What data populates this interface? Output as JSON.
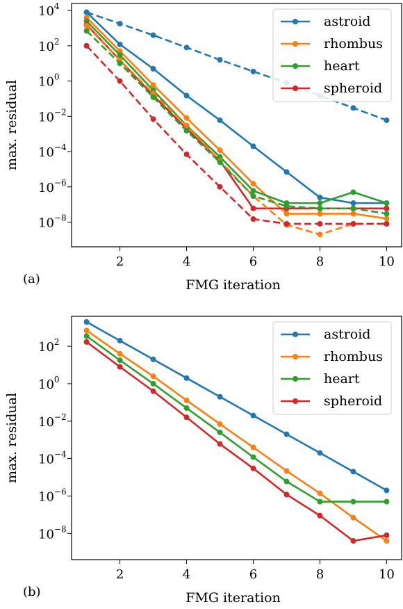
{
  "chart_data": [
    {
      "type": "line",
      "panel_label": "(a)",
      "xlabel": "FMG iteration",
      "ylabel": "max. residual",
      "xlim": [
        0.55,
        10.45
      ],
      "ylim_exponent": [
        -9.4,
        4.4
      ],
      "y_scale": "log",
      "grid": false,
      "legend_position": "top-right",
      "x_ticks": [
        2,
        4,
        6,
        8,
        10
      ],
      "y_ticks": [
        {
          "base": "10",
          "exp": "4",
          "value_exp": 4
        },
        {
          "base": "10",
          "exp": "2",
          "value_exp": 2
        },
        {
          "base": "10",
          "exp": "0",
          "value_exp": 0
        },
        {
          "base": "10",
          "exp": "−2",
          "value_exp": -2
        },
        {
          "base": "10",
          "exp": "−4",
          "value_exp": -4
        },
        {
          "base": "10",
          "exp": "−6",
          "value_exp": -6
        },
        {
          "base": "10",
          "exp": "−8",
          "value_exp": -8
        }
      ],
      "x": [
        1,
        2,
        3,
        4,
        5,
        6,
        7,
        8,
        9,
        10
      ],
      "series": [
        {
          "name": "astroid",
          "color": "#1f77b4",
          "line_style": "solid",
          "values": [
            8000,
            120,
            5,
            0.15,
            0.006,
            0.0002,
            7e-06,
            2.5e-07,
            1.2e-07,
            1.2e-07
          ]
        },
        {
          "name": "rhombus",
          "color": "#ff7f0e",
          "line_style": "solid",
          "values": [
            4000,
            50,
            0.6,
            0.008,
            0.00012,
            1.5e-06,
            3e-08,
            3e-08,
            3e-08,
            1.6e-08
          ]
        },
        {
          "name": "heart",
          "color": "#2ca02c",
          "line_style": "solid",
          "values": [
            2500,
            30,
            0.3,
            0.003,
            5e-05,
            6e-07,
            1.2e-07,
            1.2e-07,
            5e-07,
            1.2e-07
          ]
        },
        {
          "name": "spheroid",
          "color": "#d62728",
          "line_style": "solid",
          "values": [
            1600,
            15,
            0.15,
            0.002,
            3e-05,
            6e-08,
            6e-08,
            6e-08,
            6e-08,
            6e-08
          ]
        },
        {
          "name": "",
          "color": "#1f77b4",
          "line_style": "dashed",
          "values": [
            8000,
            1800,
            400,
            80,
            16,
            3.5,
            0.8,
            0.15,
            0.03,
            0.006
          ]
        },
        {
          "name": "",
          "color": "#ff7f0e",
          "line_style": "dashed",
          "values": [
            1400,
            15,
            0.2,
            0.003,
            3e-05,
            3e-07,
            7e-09,
            2e-09,
            8e-09,
            8e-09
          ]
        },
        {
          "name": "",
          "color": "#2ca02c",
          "line_style": "dashed",
          "values": [
            700,
            10,
            0.12,
            0.0015,
            2.5e-05,
            3e-07,
            8e-08,
            6e-08,
            6e-08,
            3e-08
          ]
        },
        {
          "name": "",
          "color": "#d62728",
          "line_style": "dashed",
          "values": [
            100,
            1,
            0.007,
            7e-05,
            1e-06,
            1.5e-08,
            8e-09,
            8e-09,
            8e-09,
            8e-09
          ]
        }
      ]
    },
    {
      "type": "line",
      "panel_label": "(b)",
      "xlabel": "FMG iteration",
      "ylabel": "max. residual",
      "xlim": [
        0.55,
        10.45
      ],
      "ylim_exponent": [
        -9.4,
        3.6
      ],
      "y_scale": "log",
      "grid": false,
      "legend_position": "top-right",
      "x_ticks": [
        2,
        4,
        6,
        8,
        10
      ],
      "y_ticks": [
        {
          "base": "10",
          "exp": "2",
          "value_exp": 2
        },
        {
          "base": "10",
          "exp": "0",
          "value_exp": 0
        },
        {
          "base": "10",
          "exp": "−2",
          "value_exp": -2
        },
        {
          "base": "10",
          "exp": "−4",
          "value_exp": -4
        },
        {
          "base": "10",
          "exp": "−6",
          "value_exp": -6
        },
        {
          "base": "10",
          "exp": "−8",
          "value_exp": -8
        }
      ],
      "x": [
        1,
        2,
        3,
        4,
        5,
        6,
        7,
        8,
        9,
        10
      ],
      "series": [
        {
          "name": "astroid",
          "color": "#1f77b4",
          "line_style": "solid",
          "values": [
            2000,
            200,
            20,
            2,
            0.2,
            0.02,
            0.002,
            0.0002,
            2e-05,
            2e-06
          ]
        },
        {
          "name": "rhombus",
          "color": "#ff7f0e",
          "line_style": "solid",
          "values": [
            700,
            40,
            2.5,
            0.13,
            0.007,
            0.0004,
            2.2e-05,
            1.4e-06,
            7e-08,
            4e-09
          ]
        },
        {
          "name": "heart",
          "color": "#2ca02c",
          "line_style": "solid",
          "values": [
            350,
            18,
            1,
            0.05,
            0.0025,
            0.00012,
            6e-06,
            5e-07,
            5e-07,
            5e-07
          ]
        },
        {
          "name": "spheroid",
          "color": "#d62728",
          "line_style": "solid",
          "values": [
            170,
            8,
            0.4,
            0.016,
            0.0006,
            3e-05,
            1.2e-06,
            9e-08,
            4e-09,
            8e-09
          ]
        }
      ]
    }
  ]
}
